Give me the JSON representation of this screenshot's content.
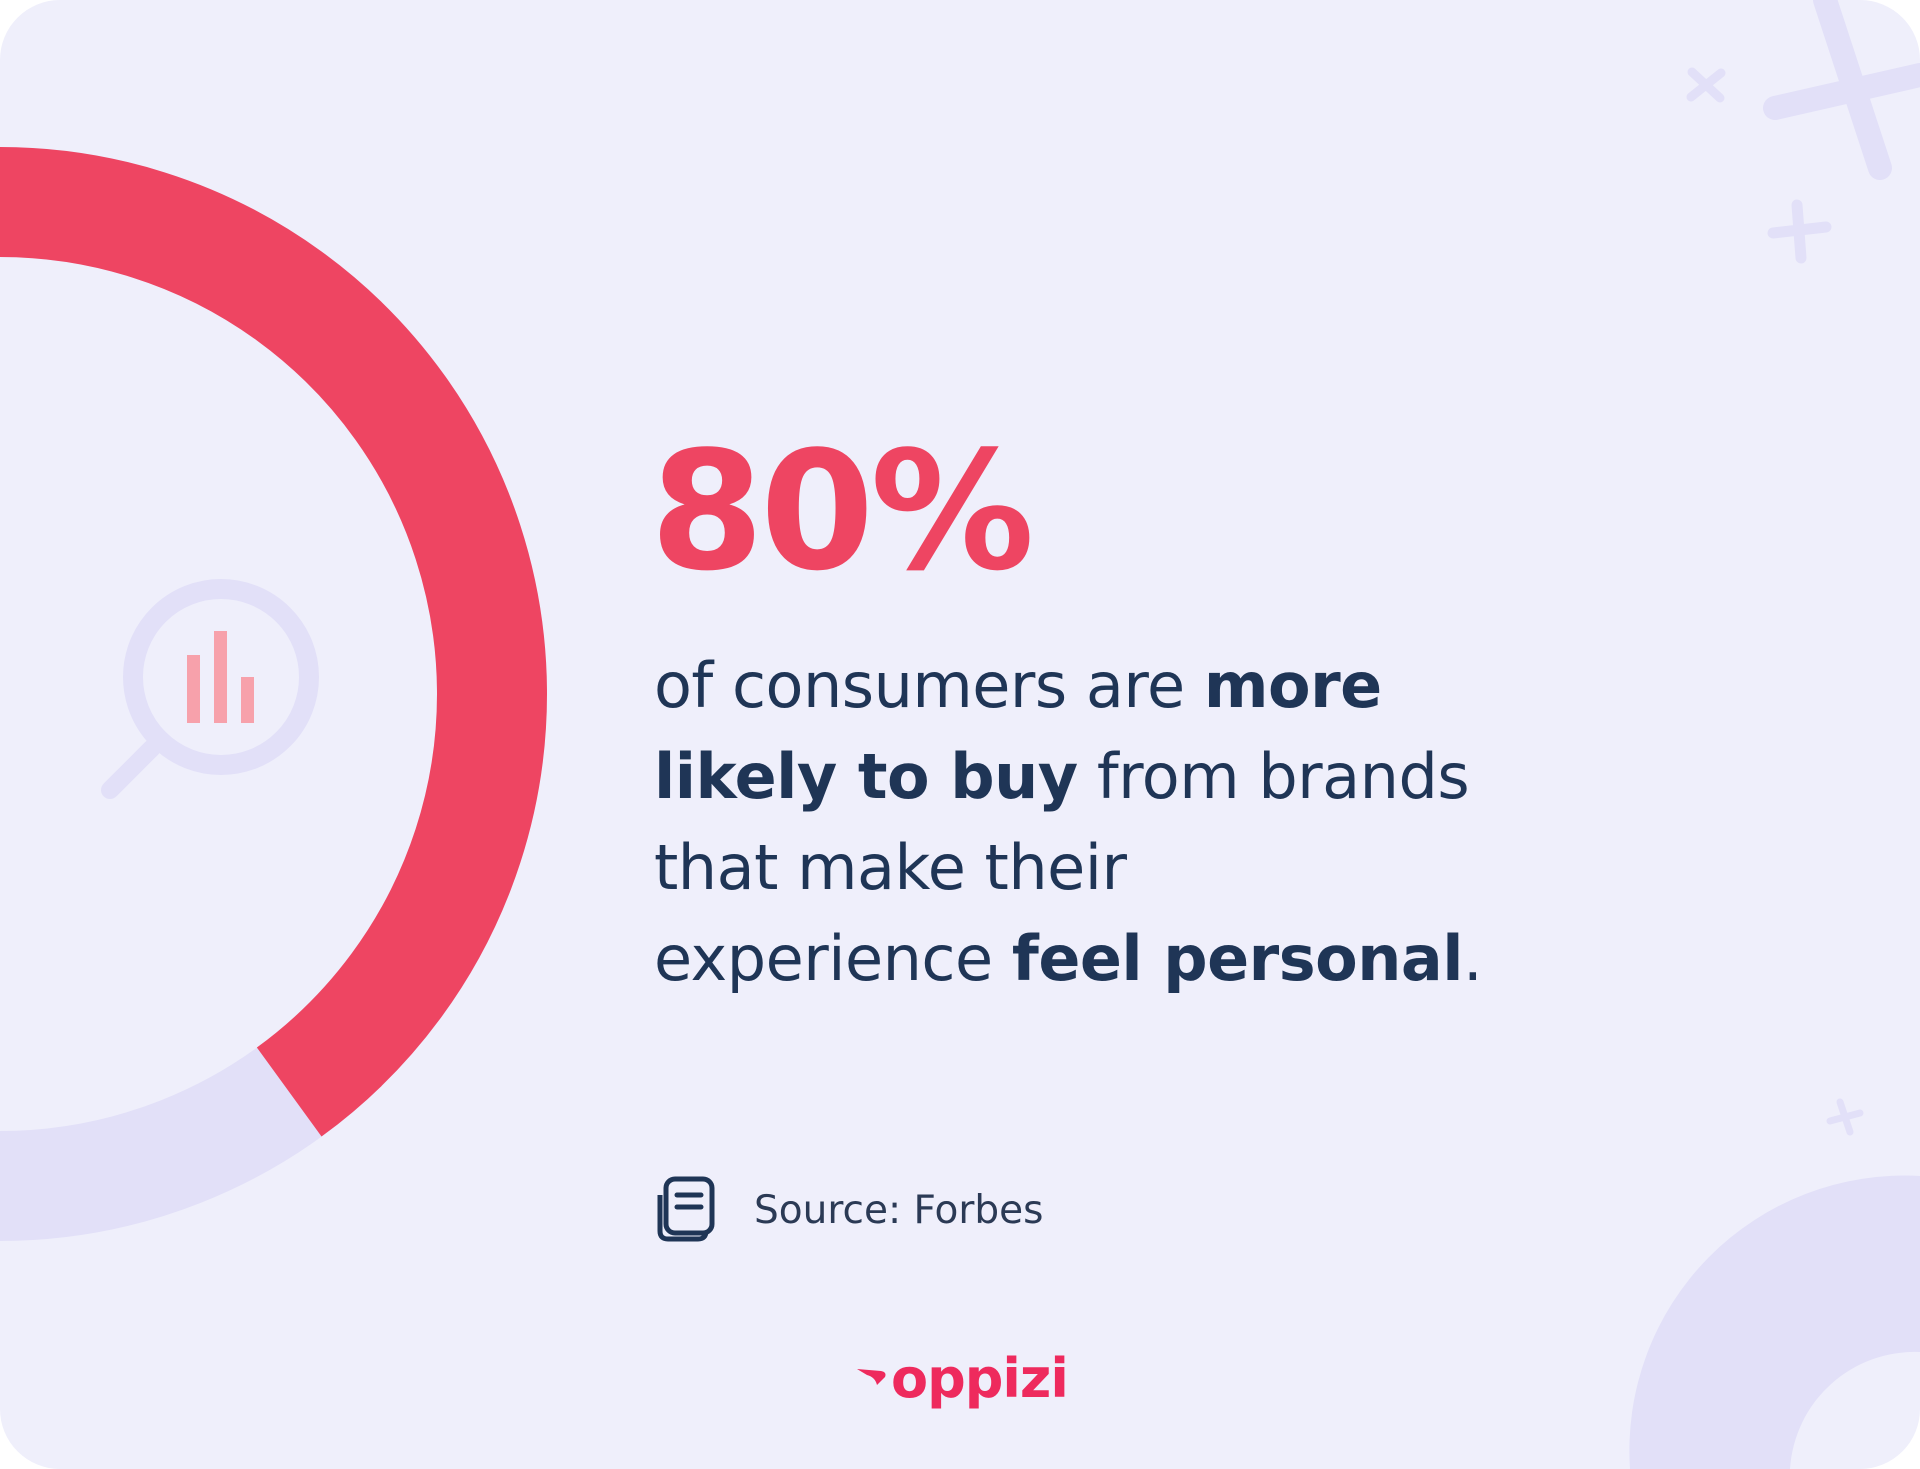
{
  "stat": {
    "value": "80%"
  },
  "description": {
    "line1_regular": "of consumers are ",
    "line1_bold": "more",
    "line2_bold": "likely to buy",
    "line2_regular": " from brands",
    "line3_regular": "that make their",
    "line4_regular": "experience ",
    "line4_bold": "feel personal",
    "line4_end": "."
  },
  "source": {
    "label": "Source: Forbes",
    "icon": "document-icon"
  },
  "brand": {
    "logo_text": "oppizi",
    "icon": "oppizi-wing-icon"
  },
  "decor": {
    "ring_fraction": 0.8,
    "magnifier_icon": "chart-search-icon",
    "sparkle_icon": "plus-sparkle-icon"
  },
  "colors": {
    "background": "#efeffb",
    "accent": "#ee4562",
    "ring_track": "#e2e0f8",
    "text": "#1f3556",
    "brand": "#ee2a5d"
  }
}
